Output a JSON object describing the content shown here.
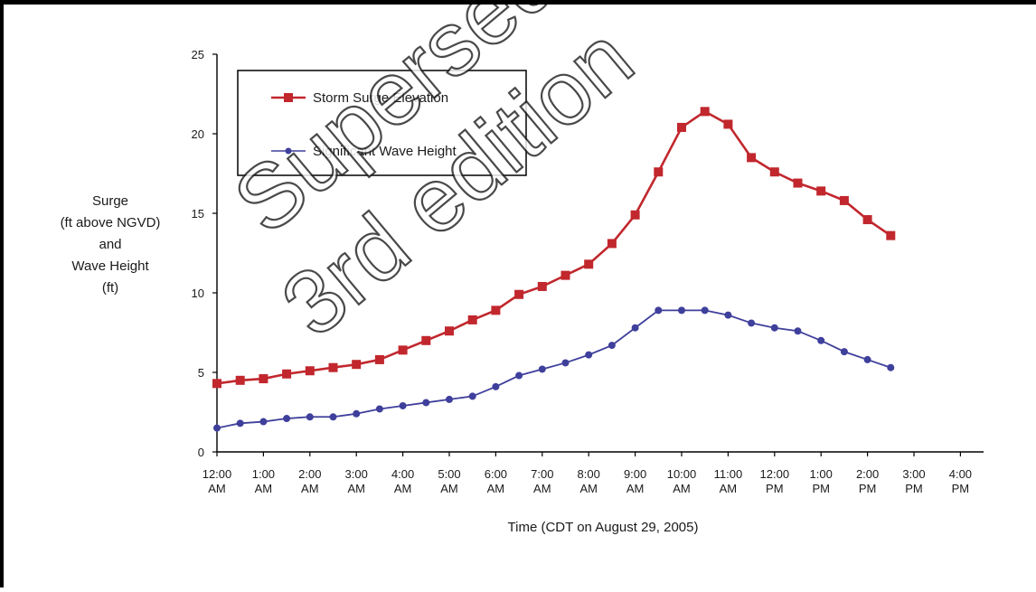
{
  "chart_data": {
    "type": "line",
    "ylabel_lines": [
      "Surge",
      "(ft above NGVD)",
      "and",
      "Wave Height",
      "(ft)"
    ],
    "xlabel": "Time  (CDT on August 29, 2005)",
    "ylim": [
      0,
      25
    ],
    "yticks": [
      "0",
      "5",
      "10",
      "15",
      "20",
      "25"
    ],
    "xlim": [
      0,
      16.5
    ],
    "xticks": [
      [
        "12:00",
        "AM"
      ],
      [
        "1:00",
        "AM"
      ],
      [
        "2:00",
        "AM"
      ],
      [
        "3:00",
        "AM"
      ],
      [
        "4:00",
        "AM"
      ],
      [
        "5:00",
        "AM"
      ],
      [
        "6:00",
        "AM"
      ],
      [
        "7:00",
        "AM"
      ],
      [
        "8:00",
        "AM"
      ],
      [
        "9:00",
        "AM"
      ],
      [
        "10:00",
        "AM"
      ],
      [
        "11:00",
        "AM"
      ],
      [
        "12:00",
        "PM"
      ],
      [
        "1:00",
        "PM"
      ],
      [
        "2:00",
        "PM"
      ],
      [
        "3:00",
        "PM"
      ],
      [
        "4:00",
        "PM"
      ]
    ],
    "legend_position": "top-left",
    "grid": false,
    "series": [
      {
        "name": "Storm Surge Elevation",
        "color": "#c1272d",
        "marker": "square",
        "x": [
          0,
          0.5,
          1,
          1.5,
          2,
          2.5,
          3,
          3.5,
          4,
          4.5,
          5,
          5.5,
          6,
          6.5,
          7,
          7.5,
          8,
          8.5,
          9,
          9.5,
          10,
          10.5,
          11,
          11.5,
          12,
          12.5,
          13,
          13.5,
          14,
          14.5
        ],
        "values": [
          4.3,
          4.5,
          4.6,
          4.9,
          5.1,
          5.3,
          5.5,
          5.8,
          6.4,
          7.0,
          7.6,
          8.3,
          8.9,
          9.9,
          10.4,
          11.1,
          11.8,
          13.1,
          14.9,
          17.6,
          20.4,
          21.4,
          20.6,
          18.5,
          17.6,
          16.9,
          16.4,
          15.8,
          14.6,
          13.6
        ]
      },
      {
        "name": "Significant Wave Height",
        "color": "#3f3f9c",
        "marker": "circle",
        "x": [
          0,
          0.5,
          1,
          1.5,
          2,
          2.5,
          3,
          3.5,
          4,
          4.5,
          5,
          5.5,
          6,
          6.5,
          7,
          7.5,
          8,
          8.5,
          9,
          9.5,
          10,
          10.5,
          11,
          11.5,
          12,
          12.5,
          13,
          13.5,
          14,
          14.5
        ],
        "values": [
          1.5,
          1.8,
          1.9,
          2.1,
          2.2,
          2.2,
          2.4,
          2.7,
          2.9,
          3.1,
          3.3,
          3.5,
          4.1,
          4.8,
          5.2,
          5.6,
          6.1,
          6.7,
          7.8,
          8.9,
          8.9,
          8.9,
          8.6,
          8.1,
          7.8,
          7.6,
          7.0,
          6.3,
          5.8,
          5.3
        ]
      }
    ]
  },
  "watermark": {
    "line1": "Superseded - see",
    "line2": "3rd edition"
  }
}
